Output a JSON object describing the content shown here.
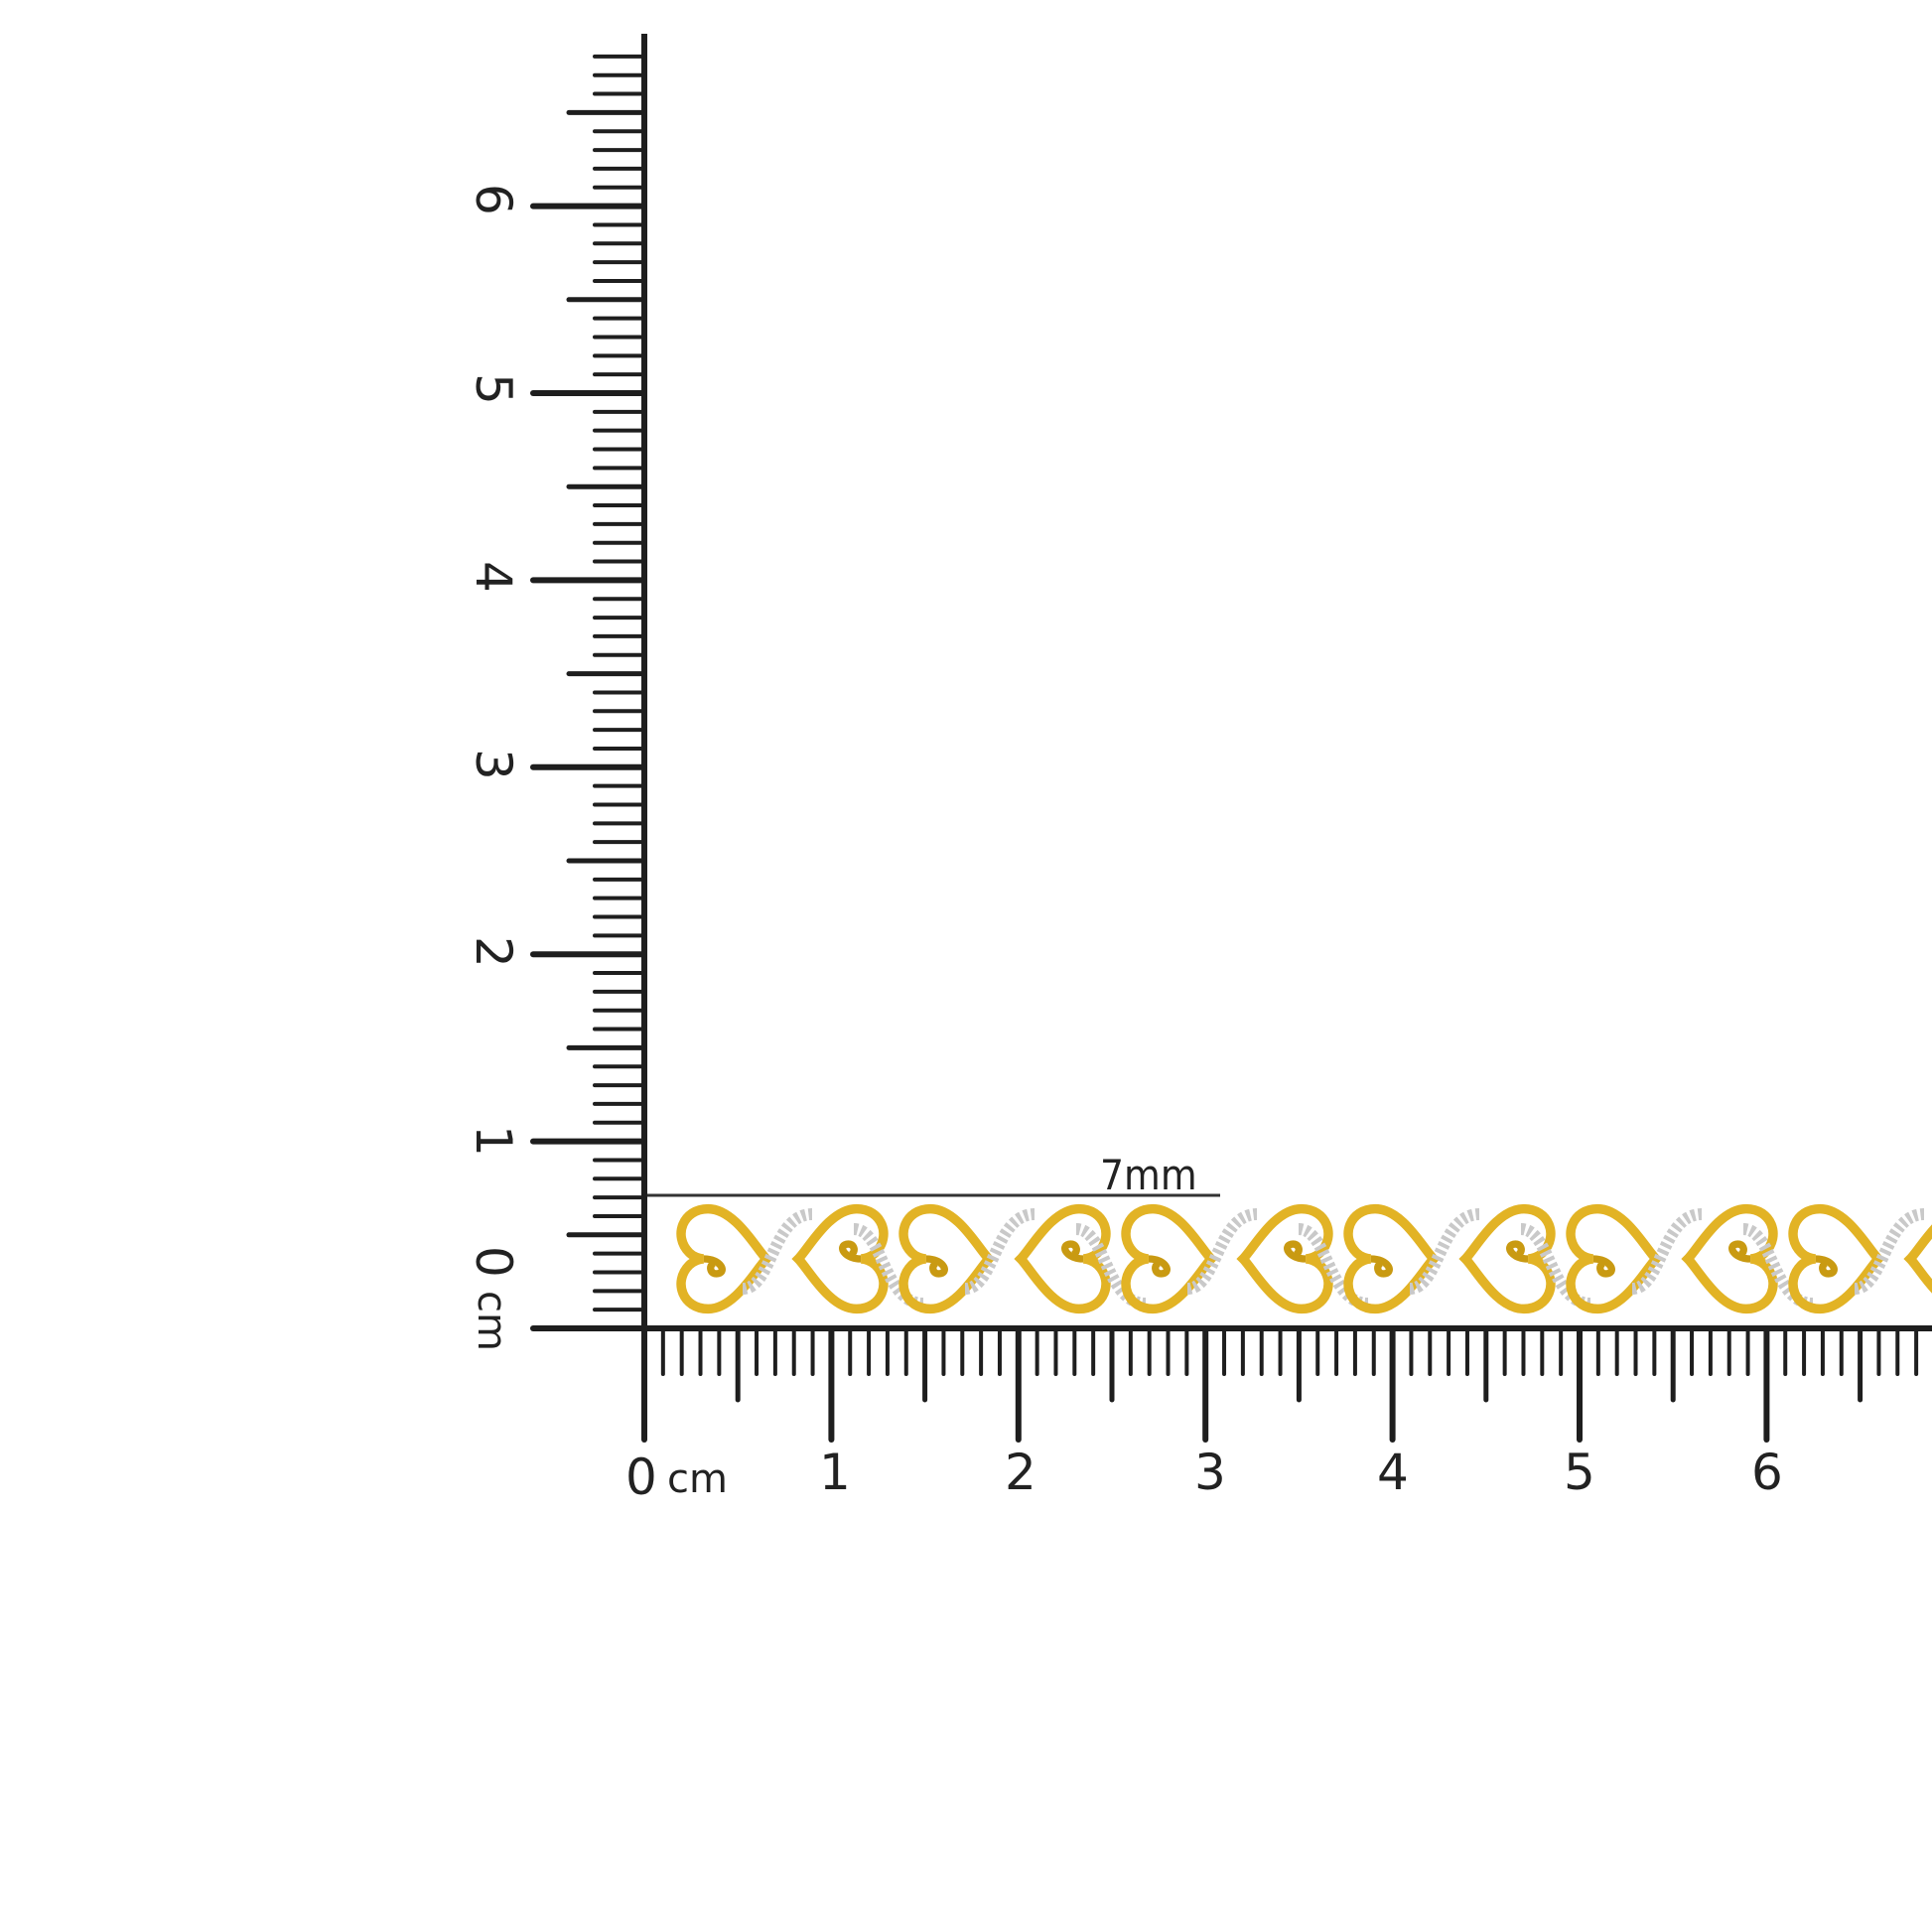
{
  "ruler": {
    "unit": "cm",
    "horizontal_labels": [
      "0",
      "1",
      "2",
      "3",
      "4",
      "5",
      "6"
    ],
    "vertical_labels": [
      "0",
      "1",
      "2",
      "3",
      "4",
      "5",
      "6"
    ],
    "ink_color": "#1e1e1e"
  },
  "annotation": {
    "width_label": "7mm"
  },
  "product": {
    "metal_color": "#e2b325",
    "stone_color": "#c9c9c9"
  }
}
